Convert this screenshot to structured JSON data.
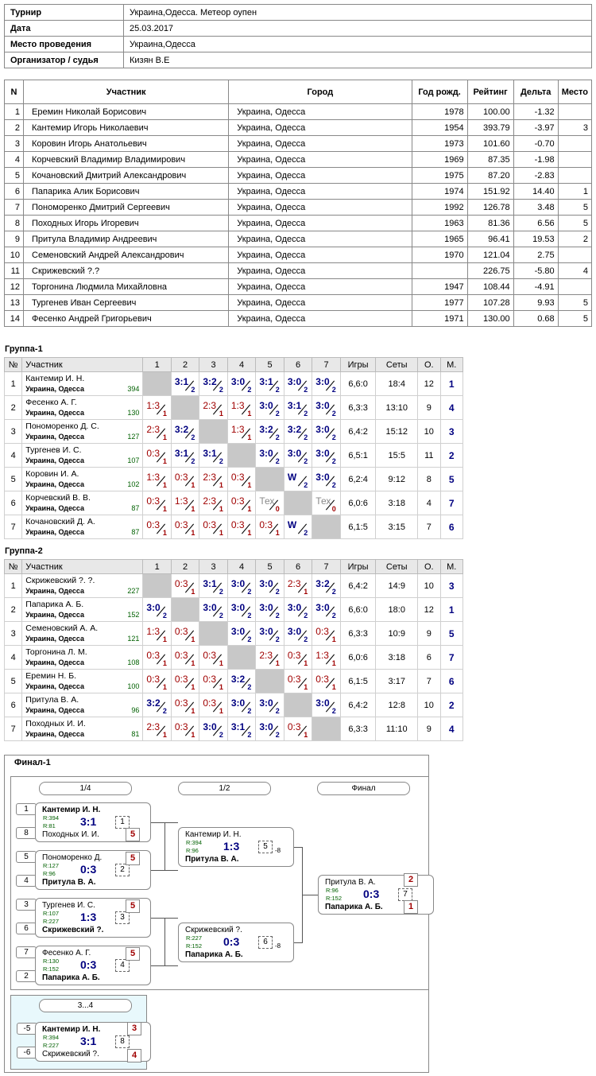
{
  "info": [
    {
      "k": "Турнир",
      "v": "Украина,Одесса. Метеор оупен"
    },
    {
      "k": "Дата",
      "v": "25.03.2017"
    },
    {
      "k": "Место проведения",
      "v": "Украина,Одесса"
    },
    {
      "k": "Организатор / судья",
      "v": "Кизян В.Е"
    }
  ],
  "players_header": [
    "N",
    "Участник",
    "Город",
    "Год рожд.",
    "Рейтинг",
    "Дельта",
    "Место"
  ],
  "players": [
    [
      "1",
      "Еремин Николай Борисович",
      "Украина, Одесса",
      "1978",
      "100.00",
      "-1.32",
      ""
    ],
    [
      "2",
      "Кантемир Игорь Николаевич",
      "Украина, Одесса",
      "1954",
      "393.79",
      "-3.97",
      "3"
    ],
    [
      "3",
      "Коровин Игорь Анатольевич",
      "Украина, Одесса",
      "1973",
      "101.60",
      "-0.70",
      ""
    ],
    [
      "4",
      "Корчевский Владимир Владимирович",
      "Украина, Одесса",
      "1969",
      "87.35",
      "-1.98",
      ""
    ],
    [
      "5",
      "Кочановский Дмитрий Александрович",
      "Украина, Одесса",
      "1975",
      "87.20",
      "-2.83",
      ""
    ],
    [
      "6",
      "Папарика Алик Борисович",
      "Украина, Одесса",
      "1974",
      "151.92",
      "14.40",
      "1"
    ],
    [
      "7",
      "Пономоренко Дмитрий Сергеевич",
      "Украина, Одесса",
      "1992",
      "126.78",
      "3.48",
      "5"
    ],
    [
      "8",
      "Походных Игорь Игоревич",
      "Украина, Одесса",
      "1963",
      "81.36",
      "6.56",
      "5"
    ],
    [
      "9",
      "Притула Владимир Андреевич",
      "Украина, Одесса",
      "1965",
      "96.41",
      "19.53",
      "2"
    ],
    [
      "10",
      "Семеновский Андрей Александрович",
      "Украина, Одесса",
      "1970",
      "121.04",
      "2.75",
      ""
    ],
    [
      "11",
      "Скрижевский ?.?",
      "Украина, Одесса",
      "",
      "226.75",
      "-5.80",
      "4"
    ],
    [
      "12",
      "Торгонина Людмила Михайловна",
      "Украина, Одесса",
      "1947",
      "108.44",
      "-4.91",
      ""
    ],
    [
      "13",
      "Тургенев Иван Сергеевич",
      "Украина, Одесса",
      "1977",
      "107.28",
      "9.93",
      "5"
    ],
    [
      "14",
      "Фесенко Андрей Григорьевич",
      "Украина, Одесса",
      "1971",
      "130.00",
      "0.68",
      "5"
    ]
  ],
  "group_header": [
    "№",
    "Участник",
    "1",
    "2",
    "3",
    "4",
    "5",
    "6",
    "7",
    "Игры",
    "Сеты",
    "О.",
    "М."
  ],
  "groups": [
    {
      "title": "Группа-1",
      "rows": [
        {
          "n": "1",
          "name": "Кантемир И. Н.",
          "city": "Украина, Одесса",
          "rating": "394",
          "cells": [
            "X",
            "3:1/2",
            "3:2/2",
            "3:0/2",
            "3:1/2",
            "3:0/2",
            "3:0/2"
          ],
          "games": "6,6:0",
          "sets": "18:4",
          "pts": "12",
          "place": "1"
        },
        {
          "n": "2",
          "name": "Фесенко А. Г.",
          "city": "Украина, Одесса",
          "rating": "130",
          "cells": [
            "1:3/1",
            "X",
            "2:3/1",
            "1:3/1",
            "3:0/2",
            "3:1/2",
            "3:0/2"
          ],
          "games": "6,3:3",
          "sets": "13:10",
          "pts": "9",
          "place": "4"
        },
        {
          "n": "3",
          "name": "Пономоренко Д. С.",
          "city": "Украина, Одесса",
          "rating": "127",
          "cells": [
            "2:3/1",
            "3:2/2",
            "X",
            "1:3/1",
            "3:2/2",
            "3:2/2",
            "3:0/2"
          ],
          "games": "6,4:2",
          "sets": "15:12",
          "pts": "10",
          "place": "3"
        },
        {
          "n": "4",
          "name": "Тургенев И. С.",
          "city": "Украина, Одесса",
          "rating": "107",
          "cells": [
            "0:3/1",
            "3:1/2",
            "3:1/2",
            "X",
            "3:0/2",
            "3:0/2",
            "3:0/2"
          ],
          "games": "6,5:1",
          "sets": "15:5",
          "pts": "11",
          "place": "2"
        },
        {
          "n": "5",
          "name": "Коровин И. А.",
          "city": "Украина, Одесса",
          "rating": "102",
          "cells": [
            "1:3/1",
            "0:3/1",
            "2:3/1",
            "0:3/1",
            "X",
            "W/2",
            "3:0/2"
          ],
          "games": "6,2:4",
          "sets": "9:12",
          "pts": "8",
          "place": "5"
        },
        {
          "n": "6",
          "name": "Корчевский В. В.",
          "city": "Украина, Одесса",
          "rating": "87",
          "cells": [
            "0:3/1",
            "1:3/1",
            "2:3/1",
            "0:3/1",
            "Tex/0",
            "X",
            "Tex/0"
          ],
          "games": "6,0:6",
          "sets": "3:18",
          "pts": "4",
          "place": "7"
        },
        {
          "n": "7",
          "name": "Кочановский Д. А.",
          "city": "Украина, Одесса",
          "rating": "87",
          "cells": [
            "0:3/1",
            "0:3/1",
            "0:3/1",
            "0:3/1",
            "0:3/1",
            "W/2",
            "X"
          ],
          "games": "6,1:5",
          "sets": "3:15",
          "pts": "7",
          "place": "6"
        }
      ]
    },
    {
      "title": "Группа-2",
      "rows": [
        {
          "n": "1",
          "name": "Скрижевский ?. ?.",
          "city": "Украина, Одесса",
          "rating": "227",
          "cells": [
            "X",
            "0:3/1",
            "3:1/2",
            "3:0/2",
            "3:0/2",
            "2:3/1",
            "3:2/2"
          ],
          "games": "6,4:2",
          "sets": "14:9",
          "pts": "10",
          "place": "3"
        },
        {
          "n": "2",
          "name": "Папарика А. Б.",
          "city": "Украина, Одесса",
          "rating": "152",
          "cells": [
            "3:0/2",
            "X",
            "3:0/2",
            "3:0/2",
            "3:0/2",
            "3:0/2",
            "3:0/2"
          ],
          "games": "6,6:0",
          "sets": "18:0",
          "pts": "12",
          "place": "1"
        },
        {
          "n": "3",
          "name": "Семеновский А. А.",
          "city": "Украина, Одесса",
          "rating": "121",
          "cells": [
            "1:3/1",
            "0:3/1",
            "X",
            "3:0/2",
            "3:0/2",
            "3:0/2",
            "0:3/1"
          ],
          "games": "6,3:3",
          "sets": "10:9",
          "pts": "9",
          "place": "5"
        },
        {
          "n": "4",
          "name": "Торгонина Л. М.",
          "city": "Украина, Одесса",
          "rating": "108",
          "cells": [
            "0:3/1",
            "0:3/1",
            "0:3/1",
            "X",
            "2:3/1",
            "0:3/1",
            "1:3/1"
          ],
          "games": "6,0:6",
          "sets": "3:18",
          "pts": "6",
          "place": "7"
        },
        {
          "n": "5",
          "name": "Еремин Н. Б.",
          "city": "Украина, Одесса",
          "rating": "100",
          "cells": [
            "0:3/1",
            "0:3/1",
            "0:3/1",
            "3:2/2",
            "X",
            "0:3/1",
            "0:3/1"
          ],
          "games": "6,1:5",
          "sets": "3:17",
          "pts": "7",
          "place": "6"
        },
        {
          "n": "6",
          "name": "Притула В. А.",
          "city": "Украина, Одесса",
          "rating": "96",
          "cells": [
            "3:2/2",
            "0:3/1",
            "0:3/1",
            "3:0/2",
            "3:0/2",
            "X",
            "3:0/2"
          ],
          "games": "6,4:2",
          "sets": "12:8",
          "pts": "10",
          "place": "2"
        },
        {
          "n": "7",
          "name": "Походных И. И.",
          "city": "Украина, Одесса",
          "rating": "81",
          "cells": [
            "2:3/1",
            "0:3/1",
            "3:0/2",
            "3:1/2",
            "3:0/2",
            "0:3/1",
            "X"
          ],
          "games": "6,3:3",
          "sets": "11:10",
          "pts": "9",
          "place": "4"
        }
      ]
    }
  ],
  "final": {
    "title": "Финал-1",
    "rounds": [
      "1/4",
      "1/2",
      "Финал"
    ],
    "third_round": "3...4",
    "matches": [
      {
        "p1": "Кантемир И. Н.",
        "r1": "R:394",
        "p2": "Походных И. И.",
        "r2": "R:81",
        "score": "3:1",
        "num": "1",
        "winner": 1,
        "s1": "1",
        "s2": "8",
        "place": "5",
        "place_side": 2
      },
      {
        "p1": "Пономоренко Д.",
        "r1": "R:127",
        "p2": "Притула В. А.",
        "r2": "R:96",
        "score": "0:3",
        "num": "2",
        "winner": 2,
        "s1": "5",
        "s2": "4",
        "place": "5",
        "place_side": 1
      },
      {
        "p1": "Тургенев И. С.",
        "r1": "R:107",
        "p2": "Скрижевский ?.",
        "r2": "R:227",
        "score": "1:3",
        "num": "3",
        "winner": 2,
        "s1": "3",
        "s2": "6",
        "place": "5",
        "place_side": 1
      },
      {
        "p1": "Фесенко А. Г.",
        "r1": "R:130",
        "p2": "Папарика А. Б.",
        "r2": "R:152",
        "score": "0:3",
        "num": "4",
        "winner": 2,
        "s1": "7",
        "s2": "2",
        "place": "5",
        "place_side": 1
      },
      {
        "p1": "Кантемир И. Н.",
        "r1": "R:394",
        "p2": "Притула В. А.",
        "r2": "R:96",
        "score": "1:3",
        "num": "5",
        "winner": 2,
        "loser_to": "-8"
      },
      {
        "p1": "Скрижевский ?.",
        "r1": "R:227",
        "p2": "Папарика А. Б.",
        "r2": "R:152",
        "score": "0:3",
        "num": "6",
        "winner": 2,
        "loser_to": "-8"
      },
      {
        "p1": "Притула В. А.",
        "r1": "R:96",
        "p2": "Папарика А. Б.",
        "r2": "R:152",
        "score": "0:3",
        "num": "7",
        "winner": 2,
        "place1": "2",
        "place2": "1"
      },
      {
        "p1": "Кантемир И. Н.",
        "r1": "R:394",
        "p2": "Скрижевский ?.",
        "r2": "R:227",
        "score": "3:1",
        "num": "8",
        "winner": 1,
        "s1": "-5",
        "s2": "-6",
        "place1": "3",
        "place2": "4"
      }
    ]
  }
}
